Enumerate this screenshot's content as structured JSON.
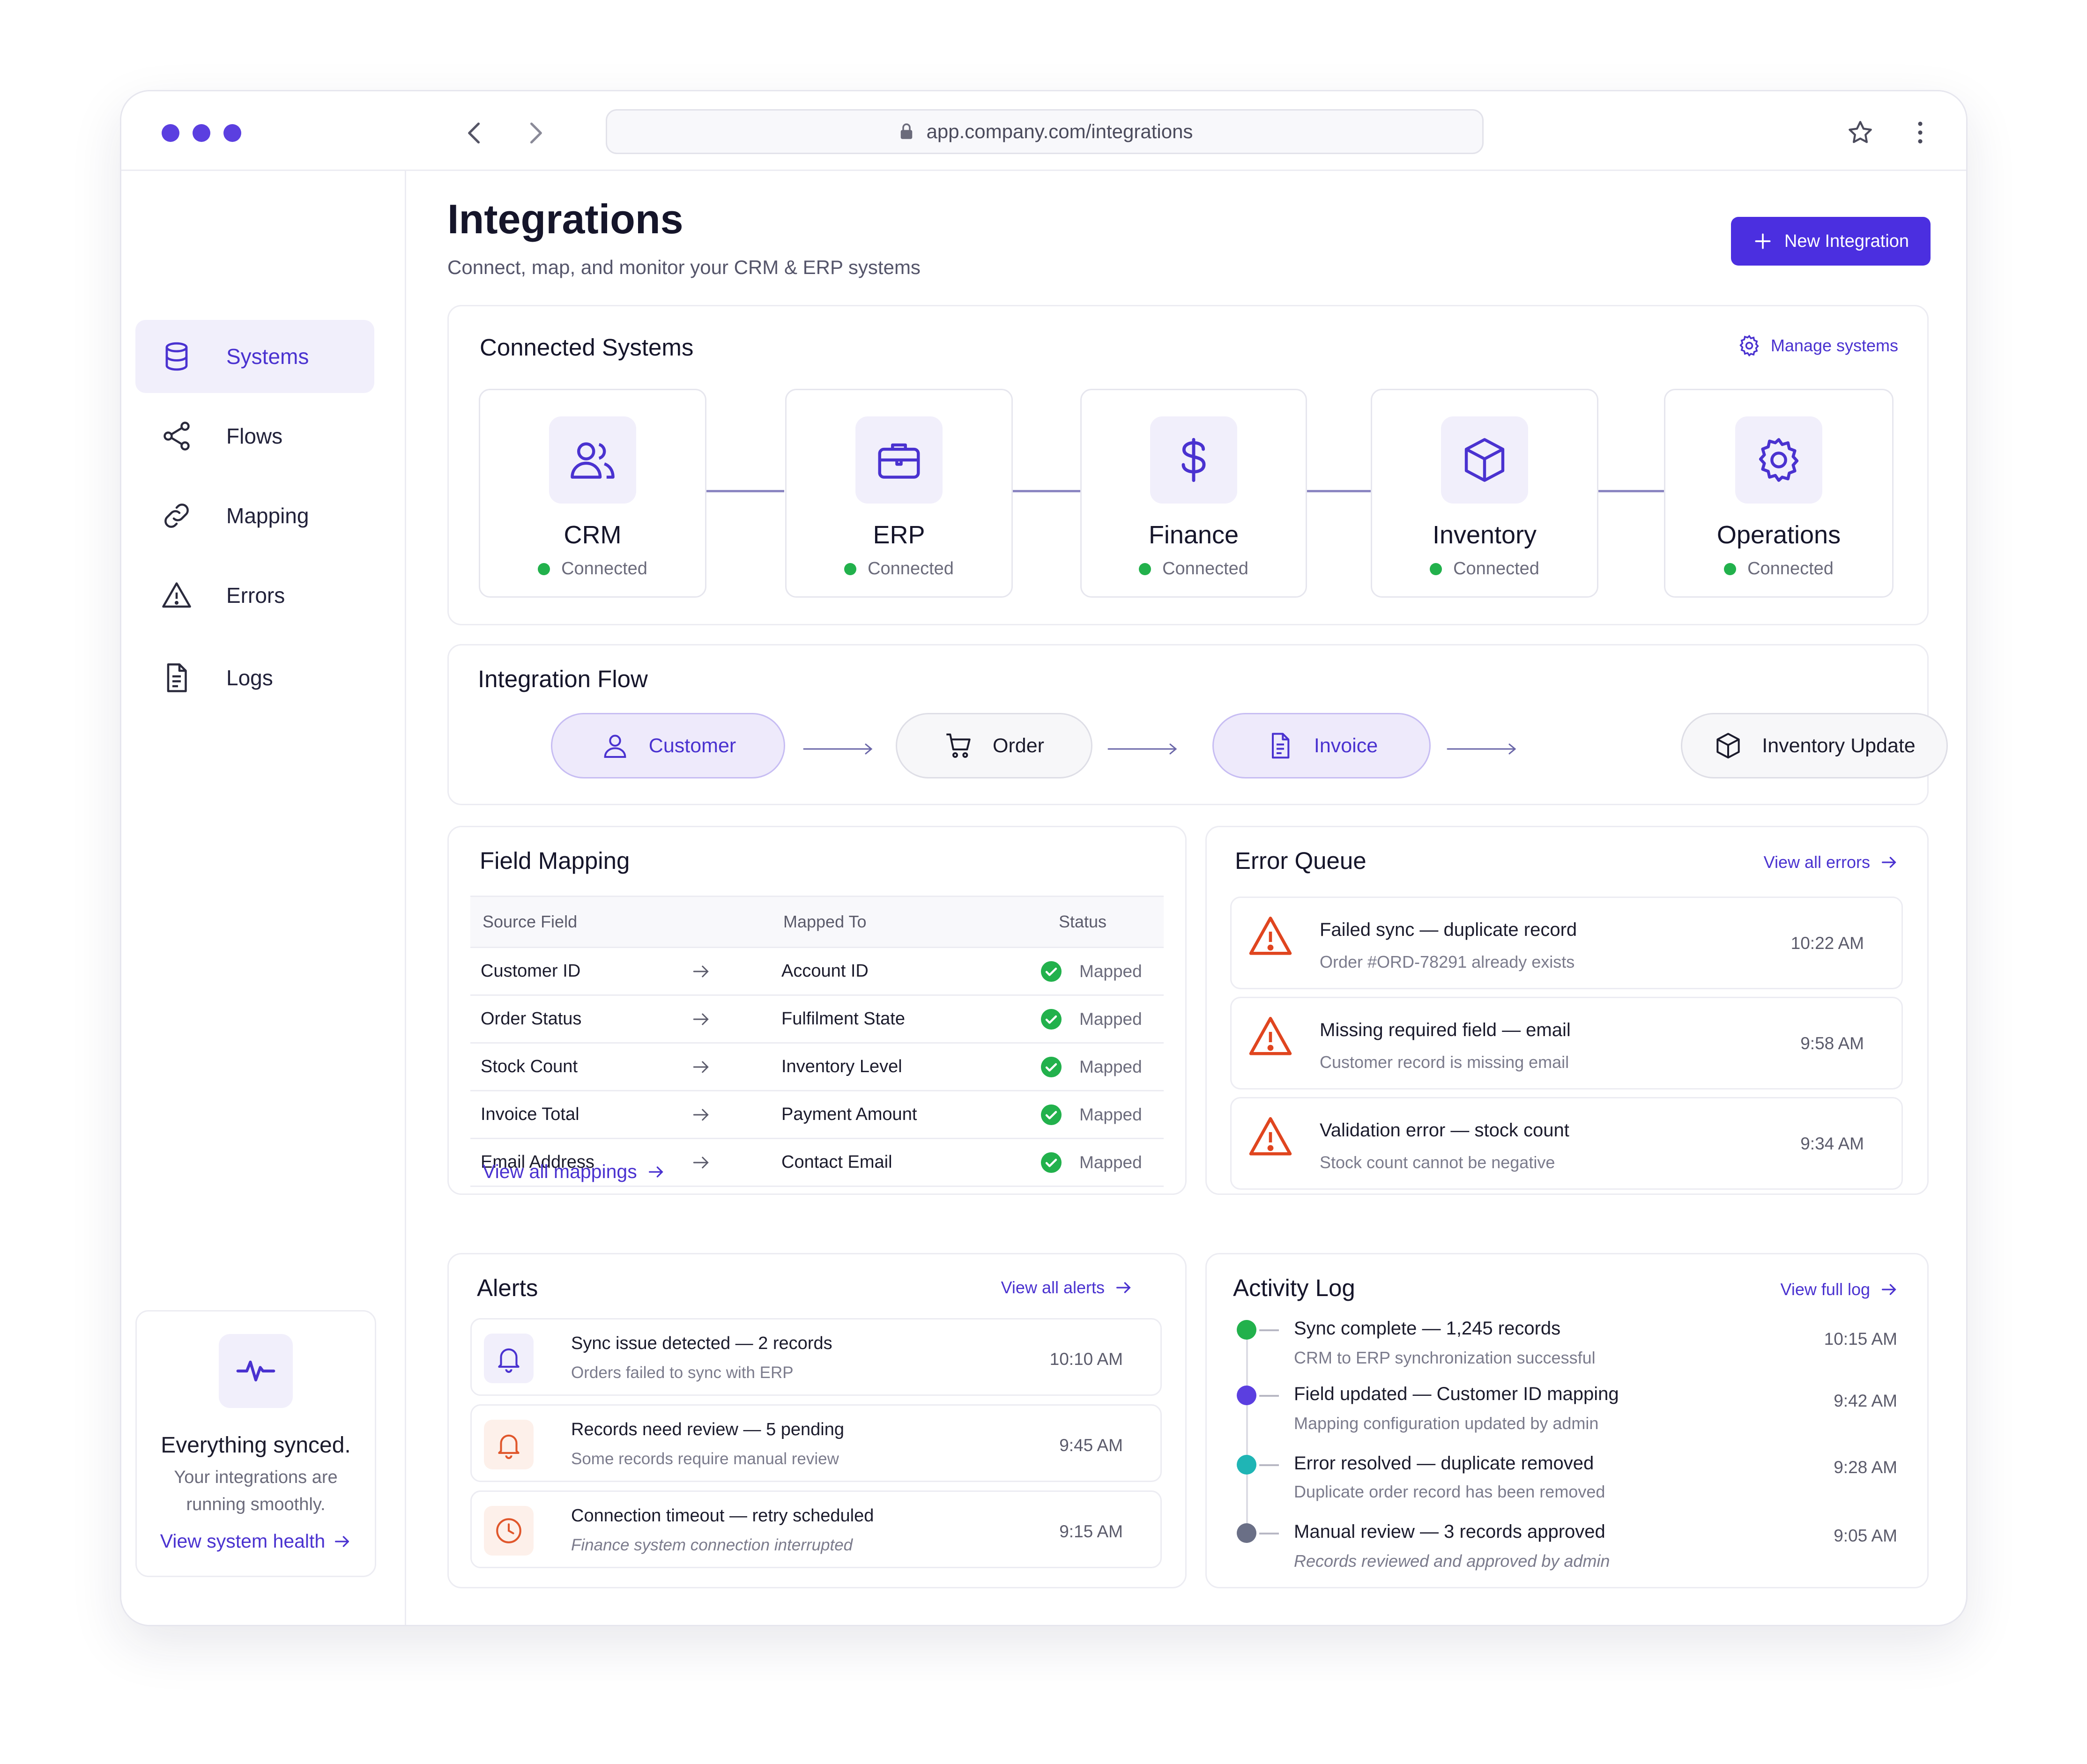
{
  "browser": {
    "url": "app.company.com/integrations",
    "icons": [
      "chevron-left-icon",
      "chevron-right-icon",
      "lock-icon",
      "star-icon",
      "more-vertical-icon"
    ]
  },
  "sidebar": {
    "items": [
      {
        "label": "Systems",
        "icon": "database-icon",
        "active": true
      },
      {
        "label": "Flows",
        "icon": "share-icon",
        "active": false
      },
      {
        "label": "Mapping",
        "icon": "link-icon",
        "active": false
      },
      {
        "label": "Errors",
        "icon": "warning-icon",
        "active": false
      },
      {
        "label": "Logs",
        "icon": "document-icon",
        "active": false
      }
    ],
    "health": {
      "title": "Everything synced.",
      "text_line1": "Your integrations are",
      "text_line2": "running smoothly.",
      "link": "View system health"
    }
  },
  "header": {
    "title": "Integrations",
    "subtitle": "Connect, map, and monitor your CRM & ERP systems",
    "new_button": "New Integration"
  },
  "connected_systems": {
    "title": "Connected Systems",
    "manage_link": "Manage systems",
    "systems": [
      {
        "name": "CRM",
        "status": "Connected",
        "icon": "users-icon"
      },
      {
        "name": "ERP",
        "status": "Connected",
        "icon": "briefcase-icon"
      },
      {
        "name": "Finance",
        "status": "Connected",
        "icon": "dollar-icon"
      },
      {
        "name": "Inventory",
        "status": "Connected",
        "icon": "box-icon"
      },
      {
        "name": "Operations",
        "status": "Connected",
        "icon": "gear-icon"
      }
    ]
  },
  "integration_flow": {
    "title": "Integration Flow",
    "steps": [
      "Customer",
      "Order",
      "Invoice",
      "Inventory Update"
    ]
  },
  "field_mapping": {
    "title": "Field Mapping",
    "columns": [
      "Source Field",
      "Mapped To",
      "Status"
    ],
    "rows": [
      {
        "source": "Customer ID",
        "target": "Account ID",
        "status": "Mapped"
      },
      {
        "source": "Order Status",
        "target": "Fulfilment State",
        "status": "Mapped"
      },
      {
        "source": "Stock Count",
        "target": "Inventory Level",
        "status": "Mapped"
      },
      {
        "source": "Invoice Total",
        "target": "Payment Amount",
        "status": "Mapped"
      },
      {
        "source": "Email Address",
        "target": "Contact Email",
        "status": "Mapped"
      }
    ],
    "view_all": "View all mappings"
  },
  "error_queue": {
    "title": "Error Queue",
    "view_all": "View all errors",
    "items": [
      {
        "title": "Failed sync — duplicate record",
        "sub": "Order #ORD-78291 already exists",
        "time": "10:22 AM"
      },
      {
        "title": "Missing required field — email",
        "sub": "Customer record is missing email",
        "time": "9:58 AM"
      },
      {
        "title": "Validation error — stock count",
        "sub": "Stock count cannot be negative",
        "time": "9:34 AM"
      }
    ]
  },
  "alerts": {
    "title": "Alerts",
    "view_all": "View all alerts",
    "items": [
      {
        "title": "Sync issue detected  —  2 records",
        "sub": "Orders failed to sync with ERP",
        "time": "10:10 AM",
        "icon": "bell-icon",
        "color": "#4a32d0"
      },
      {
        "title": "Records need review  —  5 pending",
        "sub": "Some records require manual review",
        "time": "9:45 AM",
        "icon": "bell-icon",
        "color": "#e0562b"
      },
      {
        "title": "Connection timeout  —  retry scheduled",
        "sub": "Finance system connection interrupted",
        "time": "9:15 AM",
        "icon": "clock-icon",
        "color": "#e0562b"
      }
    ]
  },
  "activity_log": {
    "title": "Activity Log",
    "view_all": "View full log",
    "items": [
      {
        "title": "Sync complete — 1,245 records",
        "sub": "CRM to ERP synchronization successful",
        "time": "10:15 AM",
        "color": "#22b14c"
      },
      {
        "title": "Field updated — Customer ID mapping",
        "sub": "Mapping configuration updated by admin",
        "time": "9:42 AM",
        "color": "#5b3fe0"
      },
      {
        "title": "Error resolved — duplicate removed",
        "sub": "Duplicate order record has been removed",
        "time": "9:28 AM",
        "color": "#1fb5b5"
      },
      {
        "title": "Manual review — 3 records approved",
        "sub": "Records reviewed and approved by admin",
        "time": "9:05 AM",
        "color": "#6a6f86"
      }
    ]
  },
  "colors": {
    "accent": "#4b2fe0",
    "success": "#22b14c",
    "error": "#e0451f",
    "warning": "#e0562b"
  }
}
